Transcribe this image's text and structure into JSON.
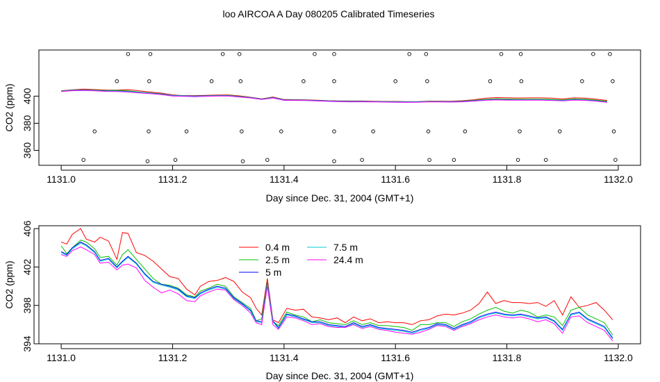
{
  "title": "loo AIRCOA A  Day 080205  Calibrated Timeseries",
  "chart_data": [
    {
      "type": "scatter",
      "xlabel": "Day since Dec. 31, 2004 (GMT+1)",
      "ylabel": "CO2 (ppm)",
      "xlim": [
        1130.96,
        1132.04
      ],
      "ylim": [
        349,
        434
      ],
      "xticks": [
        "1131.0",
        "1131.2",
        "1131.4",
        "1131.6",
        "1131.8",
        "1132.0"
      ],
      "yticks": [
        "360",
        "380",
        "400"
      ],
      "lines_x": [
        1131.0,
        1131.02,
        1131.04,
        1131.06,
        1131.08,
        1131.1,
        1131.12,
        1131.14,
        1131.16,
        1131.18,
        1131.2,
        1131.22,
        1131.24,
        1131.26,
        1131.28,
        1131.3,
        1131.32,
        1131.34,
        1131.36,
        1131.38,
        1131.4,
        1131.42,
        1131.44,
        1131.46,
        1131.48,
        1131.5,
        1131.52,
        1131.54,
        1131.56,
        1131.58,
        1131.6,
        1131.62,
        1131.64,
        1131.66,
        1131.68,
        1131.7,
        1131.72,
        1131.74,
        1131.76,
        1131.78,
        1131.8,
        1131.82,
        1131.84,
        1131.86,
        1131.88,
        1131.9,
        1131.92,
        1131.94,
        1131.96,
        1131.98
      ],
      "series": [
        {
          "color": "#FF0000",
          "values": [
            404,
            404.6,
            405.2,
            404.8,
            404.5,
            404.4,
            404.8,
            403.9,
            403,
            402.2,
            400.9,
            400.4,
            400.4,
            400.6,
            400.8,
            400.9,
            400.2,
            399.2,
            398,
            399.4,
            397.5,
            397.4,
            397.3,
            397,
            396.6,
            396.5,
            396.4,
            396.4,
            396.2,
            396.1,
            396.1,
            395.9,
            396,
            396.3,
            396.3,
            396.2,
            396.6,
            397.3,
            398.4,
            398.9,
            398.8,
            398.6,
            398.7,
            398.7,
            398.5,
            397.9,
            398.7,
            398.5,
            397.8,
            396.8
          ]
        },
        {
          "color": "#00C000",
          "values": [
            403.8,
            404.4,
            404.6,
            404.4,
            404.1,
            404.3,
            403.9,
            403,
            402.4,
            401.7,
            400.6,
            400.3,
            400.1,
            400.3,
            400.5,
            400.6,
            399.8,
            399,
            397.9,
            399.1,
            397.3,
            397.2,
            397.1,
            396.8,
            396.5,
            396.3,
            396.2,
            396.2,
            396,
            396,
            395.9,
            395.8,
            395.9,
            396.1,
            396.1,
            396,
            396.3,
            396.9,
            397.6,
            398,
            397.9,
            397.8,
            397.8,
            397.8,
            397.6,
            397.2,
            397.9,
            397.7,
            397.1,
            396.2
          ]
        },
        {
          "color": "#0000FF",
          "values": [
            403.7,
            404.3,
            404.5,
            404.2,
            403.9,
            403.8,
            403.4,
            402.8,
            402.2,
            401.5,
            400.5,
            400.2,
            400,
            400.2,
            400.4,
            400.4,
            399.6,
            398.9,
            397.8,
            398.9,
            397.2,
            397.1,
            397,
            396.7,
            396.4,
            396.2,
            396.1,
            396.1,
            396,
            395.9,
            395.8,
            395.7,
            395.8,
            396,
            396,
            395.9,
            396.1,
            396.6,
            397.2,
            397.5,
            397.4,
            397.3,
            397.3,
            397.3,
            397.1,
            396.8,
            397.4,
            397.2,
            396.6,
            395.7
          ]
        },
        {
          "color": "#00CCCC",
          "values": [
            403.6,
            404.2,
            404.4,
            404.1,
            403.8,
            403.7,
            403.3,
            402.7,
            402.1,
            401.4,
            400.4,
            400.1,
            399.9,
            400.1,
            400.3,
            400.3,
            399.5,
            398.8,
            397.7,
            398.8,
            397.1,
            397,
            396.9,
            396.6,
            396.3,
            396.1,
            396,
            396,
            395.9,
            395.8,
            395.7,
            395.6,
            395.7,
            395.9,
            395.9,
            395.8,
            396,
            396.5,
            397.1,
            397.4,
            397.3,
            397.2,
            397.2,
            397.2,
            397,
            396.7,
            397.3,
            397.1,
            396.5,
            395.6
          ]
        },
        {
          "color": "#FF00FF",
          "values": [
            403.4,
            404,
            404.2,
            403.9,
            403.5,
            403.4,
            403,
            402.4,
            401.8,
            401.1,
            400.1,
            399.8,
            399.6,
            399.9,
            400.1,
            400.1,
            399.3,
            398.6,
            397.5,
            398.6,
            396.9,
            396.8,
            396.7,
            396.4,
            396.1,
            395.9,
            395.8,
            395.8,
            395.7,
            395.6,
            395.5,
            395.4,
            395.5,
            395.7,
            395.7,
            395.6,
            395.8,
            396.3,
            396.9,
            397.2,
            397.1,
            397,
            397,
            397,
            396.8,
            396.5,
            397.1,
            396.9,
            396.3,
            395.4
          ]
        }
      ],
      "points": [
        {
          "x": 1131.04,
          "y": 353
        },
        {
          "x": 1131.06,
          "y": 374
        },
        {
          "x": 1131.1,
          "y": 411
        },
        {
          "x": 1131.12,
          "y": 431
        },
        {
          "x": 1131.155,
          "y": 352
        },
        {
          "x": 1131.157,
          "y": 374
        },
        {
          "x": 1131.158,
          "y": 411
        },
        {
          "x": 1131.16,
          "y": 431
        },
        {
          "x": 1131.205,
          "y": 353
        },
        {
          "x": 1131.225,
          "y": 374
        },
        {
          "x": 1131.27,
          "y": 411
        },
        {
          "x": 1131.29,
          "y": 431
        },
        {
          "x": 1131.32,
          "y": 431
        },
        {
          "x": 1131.322,
          "y": 411
        },
        {
          "x": 1131.324,
          "y": 374
        },
        {
          "x": 1131.326,
          "y": 352
        },
        {
          "x": 1131.37,
          "y": 353
        },
        {
          "x": 1131.395,
          "y": 374
        },
        {
          "x": 1131.435,
          "y": 411
        },
        {
          "x": 1131.455,
          "y": 431
        },
        {
          "x": 1131.49,
          "y": 431
        },
        {
          "x": 1131.49,
          "y": 411
        },
        {
          "x": 1131.49,
          "y": 374
        },
        {
          "x": 1131.49,
          "y": 352
        },
        {
          "x": 1131.54,
          "y": 353
        },
        {
          "x": 1131.56,
          "y": 374
        },
        {
          "x": 1131.6,
          "y": 411
        },
        {
          "x": 1131.625,
          "y": 431
        },
        {
          "x": 1131.655,
          "y": 431
        },
        {
          "x": 1131.657,
          "y": 411
        },
        {
          "x": 1131.659,
          "y": 374
        },
        {
          "x": 1131.661,
          "y": 353
        },
        {
          "x": 1131.705,
          "y": 353
        },
        {
          "x": 1131.725,
          "y": 374
        },
        {
          "x": 1131.77,
          "y": 411
        },
        {
          "x": 1131.79,
          "y": 431
        },
        {
          "x": 1131.825,
          "y": 431
        },
        {
          "x": 1131.826,
          "y": 411
        },
        {
          "x": 1131.823,
          "y": 374
        },
        {
          "x": 1131.82,
          "y": 353
        },
        {
          "x": 1131.87,
          "y": 353
        },
        {
          "x": 1131.895,
          "y": 374
        },
        {
          "x": 1131.935,
          "y": 411
        },
        {
          "x": 1131.955,
          "y": 431
        },
        {
          "x": 1131.985,
          "y": 431
        },
        {
          "x": 1131.99,
          "y": 411
        },
        {
          "x": 1131.992,
          "y": 374
        },
        {
          "x": 1131.995,
          "y": 353
        }
      ]
    },
    {
      "type": "line",
      "xlabel": "Day since Dec. 31, 2004 (GMT+1)",
      "ylabel": "CO2 (ppm)",
      "xlim": [
        1130.96,
        1132.04
      ],
      "ylim": [
        394,
        406.3
      ],
      "xticks": [
        "1131.0",
        "1131.2",
        "1131.4",
        "1131.6",
        "1131.8",
        "1132.0"
      ],
      "yticks": [
        "394",
        "398",
        "402",
        "406"
      ],
      "x": [
        1131.0,
        1131.01,
        1131.02,
        1131.035,
        1131.045,
        1131.06,
        1131.07,
        1131.085,
        1131.1,
        1131.11,
        1131.12,
        1131.135,
        1131.15,
        1131.165,
        1131.18,
        1131.195,
        1131.21,
        1131.225,
        1131.24,
        1131.25,
        1131.265,
        1131.28,
        1131.295,
        1131.31,
        1131.325,
        1131.34,
        1131.35,
        1131.36,
        1131.37,
        1131.38,
        1131.39,
        1131.405,
        1131.42,
        1131.435,
        1131.45,
        1131.465,
        1131.48,
        1131.495,
        1131.51,
        1131.525,
        1131.54,
        1131.555,
        1131.57,
        1131.585,
        1131.6,
        1131.615,
        1131.63,
        1131.645,
        1131.66,
        1131.675,
        1131.69,
        1131.705,
        1131.72,
        1131.735,
        1131.75,
        1131.765,
        1131.78,
        1131.795,
        1131.81,
        1131.825,
        1131.84,
        1131.855,
        1131.87,
        1131.885,
        1131.9,
        1131.915,
        1131.93,
        1131.945,
        1131.96,
        1131.975,
        1131.99
      ],
      "series": [
        {
          "name": "0.4 m",
          "color": "#FF0000",
          "values": [
            404.6,
            404.4,
            405.4,
            406.0,
            404.9,
            404.6,
            405.1,
            404.7,
            402.8,
            405.6,
            405.5,
            403.5,
            403.2,
            402.6,
            401.8,
            401.0,
            400.8,
            399.7,
            399.1,
            400.0,
            400.5,
            400.6,
            400.9,
            400.5,
            399.4,
            398.8,
            397.7,
            397.0,
            400.8,
            396.5,
            396.2,
            397.7,
            397.5,
            397.6,
            396.8,
            396.7,
            396.5,
            396.7,
            396.2,
            396.8,
            396.4,
            396.6,
            396.2,
            396.3,
            396.2,
            396.2,
            396.0,
            396.4,
            396.5,
            396.9,
            397.1,
            397.0,
            397.2,
            397.5,
            398.2,
            399.4,
            398.2,
            398.5,
            398.3,
            398.3,
            398.2,
            398.3,
            397.9,
            398.5,
            397.0,
            398.9,
            397.8,
            398.0,
            398.3,
            397.5,
            396.5
          ]
        },
        {
          "name": "2.5 m",
          "color": "#00C000",
          "values": [
            404.2,
            403.4,
            404.0,
            404.8,
            404.6,
            403.9,
            403.0,
            403.1,
            402.2,
            403.3,
            403.8,
            402.8,
            401.8,
            400.8,
            400.2,
            400.1,
            399.8,
            399.1,
            398.9,
            399.5,
            399.8,
            400.2,
            400.0,
            398.9,
            398.3,
            397.7,
            396.4,
            396.6,
            400.5,
            396.3,
            395.9,
            397.3,
            397.0,
            396.8,
            396.3,
            396.5,
            396.2,
            396.1,
            396.0,
            396.4,
            396.0,
            396.2,
            395.9,
            395.9,
            395.8,
            395.7,
            395.4,
            396.0,
            396.0,
            396.2,
            396.2,
            395.8,
            396.3,
            396.6,
            397.1,
            397.5,
            397.8,
            397.4,
            397.2,
            397.5,
            397.3,
            396.8,
            397.0,
            396.8,
            395.9,
            397.5,
            397.8,
            397.0,
            396.6,
            396.2,
            394.9
          ]
        },
        {
          "name": "5 m",
          "color": "#0000FF",
          "values": [
            403.6,
            403.3,
            404.0,
            404.6,
            404.3,
            403.6,
            402.7,
            402.9,
            402.0,
            402.6,
            403.1,
            402.4,
            401.3,
            400.5,
            400.2,
            400.0,
            399.7,
            399.0,
            398.8,
            399.3,
            399.7,
            400.0,
            399.8,
            398.8,
            398.2,
            397.5,
            396.4,
            396.3,
            400.3,
            396.4,
            395.7,
            397.1,
            396.9,
            396.6,
            396.3,
            396.3,
            396.0,
            395.9,
            395.8,
            396.2,
            395.8,
            396.0,
            395.7,
            395.6,
            395.5,
            395.4,
            395.2,
            395.5,
            395.7,
            396.1,
            396.0,
            395.6,
            396.0,
            396.3,
            396.8,
            397.1,
            397.3,
            397.1,
            397.0,
            397.1,
            396.9,
            396.7,
            396.8,
            396.4,
            395.5,
            397.1,
            397.3,
            396.6,
            396.2,
            395.8,
            394.6
          ]
        },
        {
          "name": "7.5 m",
          "color": "#00CCCC",
          "values": [
            403.5,
            403.2,
            403.9,
            404.5,
            404.2,
            403.5,
            402.6,
            402.8,
            401.9,
            402.5,
            403.0,
            402.3,
            401.2,
            400.4,
            400.1,
            399.9,
            399.6,
            398.9,
            398.7,
            399.2,
            399.6,
            399.9,
            399.7,
            398.7,
            398.1,
            397.4,
            396.3,
            396.2,
            400.2,
            396.3,
            395.6,
            397.0,
            396.8,
            396.5,
            396.2,
            396.2,
            395.9,
            395.8,
            395.7,
            396.1,
            395.7,
            395.9,
            395.6,
            395.5,
            395.4,
            395.3,
            395.1,
            395.4,
            395.6,
            396.0,
            395.9,
            395.5,
            395.9,
            396.2,
            396.7,
            397.0,
            397.2,
            397.0,
            396.9,
            397.0,
            396.8,
            396.6,
            396.7,
            396.3,
            395.4,
            397.0,
            397.2,
            396.5,
            396.1,
            395.7,
            394.5
          ]
        },
        {
          "name": "24.4 m",
          "color": "#FF00FF",
          "values": [
            403.3,
            403.1,
            403.7,
            404.1,
            403.8,
            403.3,
            402.4,
            402.5,
            401.7,
            402.2,
            402.3,
            401.9,
            400.6,
            399.9,
            399.3,
            399.6,
            399.2,
            398.5,
            398.4,
            399.0,
            399.4,
            399.7,
            399.6,
            398.6,
            398.0,
            397.2,
            396.2,
            396.0,
            400.0,
            396.0,
            395.5,
            396.8,
            396.7,
            396.4,
            396.0,
            396.1,
            395.8,
            395.7,
            395.7,
            396.0,
            395.6,
            395.8,
            395.5,
            395.4,
            395.2,
            395.1,
            395.0,
            395.2,
            395.5,
            395.9,
            395.8,
            395.4,
            395.8,
            396.1,
            396.5,
            396.8,
            397.0,
            396.8,
            396.7,
            396.8,
            396.6,
            396.3,
            396.5,
            396.1,
            395.1,
            396.8,
            396.9,
            396.2,
            395.8,
            395.4,
            394.3
          ]
        }
      ]
    }
  ]
}
